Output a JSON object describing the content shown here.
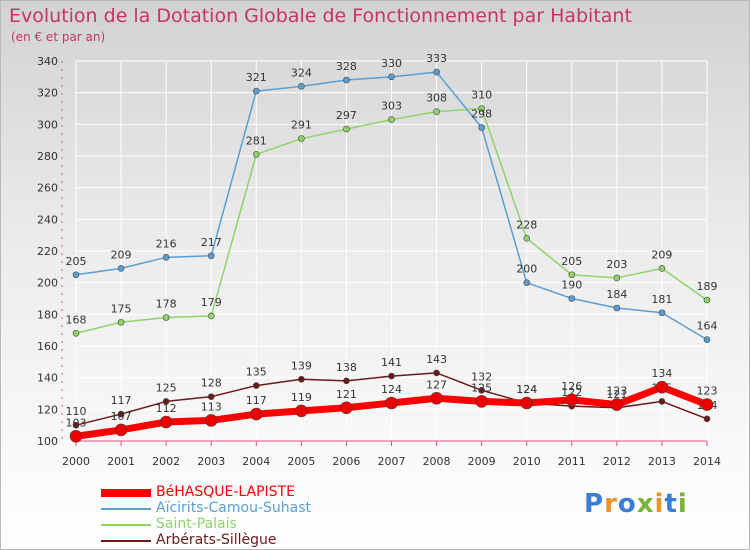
{
  "header": {
    "title": "Evolution de la Dotation Globale de Fonctionnement par Habitant",
    "subtitle": "(en € et par an)"
  },
  "logo_text": "Proxiti",
  "colors": {
    "title": "#c8346a",
    "grid": "#ffffff"
  },
  "chart_data": {
    "type": "line",
    "title": "Evolution de la Dotation Globale de Fonctionnement par Habitant",
    "subtitle": "(en € et par an)",
    "xlabel": "",
    "ylabel": "",
    "x": [
      "2000",
      "2001",
      "2002",
      "2003",
      "2004",
      "2005",
      "2006",
      "2007",
      "2008",
      "2009",
      "2010",
      "2011",
      "2012",
      "2013",
      "2014"
    ],
    "ylim": [
      100,
      340
    ],
    "yticks": [
      100,
      120,
      140,
      160,
      180,
      200,
      220,
      240,
      260,
      280,
      300,
      320,
      340
    ],
    "grid": true,
    "legend_position": "bottom-left",
    "series": [
      {
        "name": "Arbérats-Sillègue",
        "color": "#6b1a1a",
        "marker": "#6b1a1a",
        "width": 1.5,
        "radius": 3,
        "values": [
          110,
          117,
          125,
          128,
          135,
          139,
          138,
          141,
          143,
          132,
          124,
          122,
          121,
          125,
          114
        ],
        "labels": [
          "110",
          "117",
          "125",
          "128",
          "135",
          "139",
          "138",
          "141",
          "143",
          "132",
          "124",
          "122",
          "121",
          "125",
          "114"
        ]
      },
      {
        "name": "Saint-Palais",
        "color": "#8fd36b",
        "marker": "#8fd36b",
        "width": 1.5,
        "radius": 3,
        "values": [
          168,
          175,
          178,
          179,
          281,
          291,
          297,
          303,
          308,
          310,
          228,
          205,
          203,
          209,
          189
        ],
        "labels": [
          "168",
          "175",
          "178",
          "179",
          "281",
          "291",
          "297",
          "303",
          "308",
          "310",
          "228",
          "205",
          "203",
          "209",
          "189"
        ]
      },
      {
        "name": "Aïcirits-Camou-Suhast",
        "color": "#5a9fd4",
        "marker": "#5a9fd4",
        "width": 1.5,
        "radius": 3,
        "values": [
          205,
          209,
          216,
          217,
          321,
          324,
          328,
          330,
          333,
          298,
          200,
          190,
          184,
          181,
          164
        ],
        "labels": [
          "205",
          "209",
          "216",
          "217",
          "321",
          "324",
          "328",
          "330",
          "333",
          "298",
          "200",
          "190",
          "184",
          "181",
          "164"
        ]
      },
      {
        "name": "BéHASQUE-LAPISTE",
        "color": "#ff0000",
        "marker": "#ee0000",
        "width": 7,
        "radius": 6,
        "values": [
          103,
          107,
          112,
          113,
          117,
          119,
          121,
          124,
          127,
          125,
          124,
          126,
          123,
          134,
          123
        ],
        "labels": [
          "103",
          "107",
          "112",
          "113",
          "117",
          "119",
          "121",
          "124",
          "127",
          "125",
          "124",
          "126",
          "123",
          "134",
          "123"
        ]
      }
    ]
  },
  "legend": {
    "items": [
      {
        "label": "BéHASQUE-LAPISTE",
        "color": "#ff0000",
        "thick": 8
      },
      {
        "label": "Aïcirits-Camou-Suhast",
        "color": "#5a9fd4",
        "thick": 2
      },
      {
        "label": "Saint-Palais",
        "color": "#8fd36b",
        "thick": 2
      },
      {
        "label": "Arbérats-Sillègue",
        "color": "#6b1a1a",
        "thick": 2
      }
    ]
  }
}
